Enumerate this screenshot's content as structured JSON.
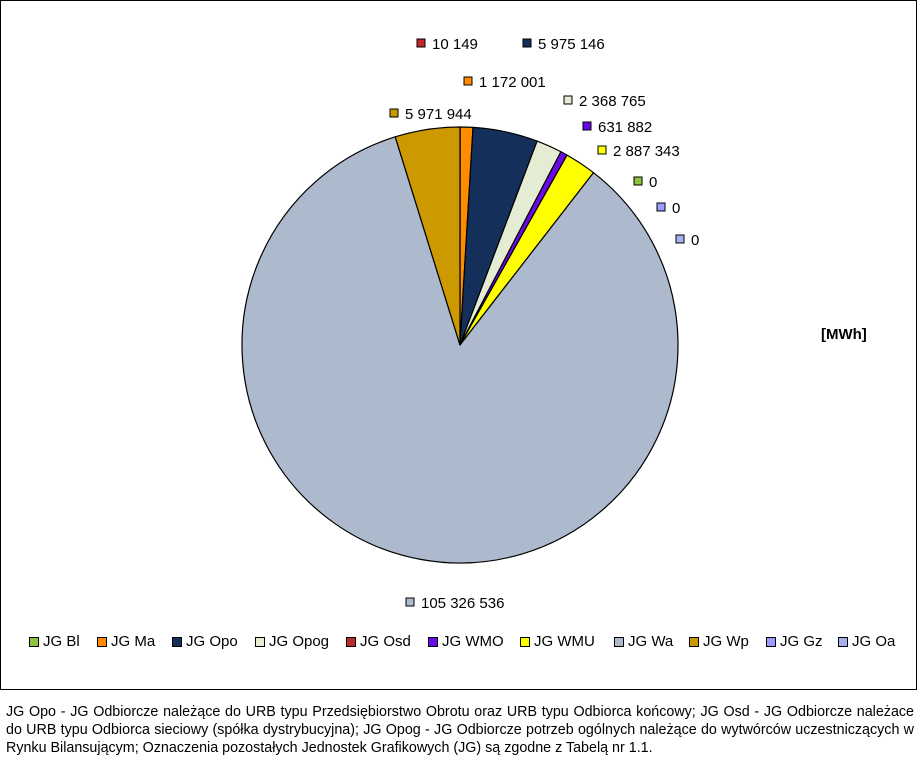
{
  "chart_data": {
    "type": "pie",
    "unit_label": "[MWh]",
    "slices": [
      {
        "name": "JG Osd",
        "value": 10149,
        "label": "10 149",
        "color": "#c0282a"
      },
      {
        "name": "JG Ma",
        "value": 1172001,
        "label": "1 172 001",
        "color": "#ff8c00"
      },
      {
        "name": "JG Opo",
        "value": 5975146,
        "label": "5 975 146",
        "color": "#14305a"
      },
      {
        "name": "JG Opog",
        "value": 2368765,
        "label": "2 368 765",
        "color": "#e4ecd4"
      },
      {
        "name": "JG WMO",
        "value": 631882,
        "label": "631 882",
        "color": "#6a0ae6"
      },
      {
        "name": "JG WMU",
        "value": 2887343,
        "label": "2 887 343",
        "color": "#ffff00"
      },
      {
        "name": "JG Bl",
        "value": 0,
        "label": "0",
        "color": "#8cc43c"
      },
      {
        "name": "JG Gz",
        "value": 0,
        "label": "0",
        "color": "#9c9cff"
      },
      {
        "name": "JG Oa",
        "value": 0,
        "label": "0",
        "color": "#a8b0f0"
      },
      {
        "name": "JG Wa",
        "value": 105326536,
        "label": "105 326 536",
        "color": "#adb9cc"
      },
      {
        "name": "JG Wp",
        "value": 5971944,
        "label": "5 971 944",
        "color": "#cc9900"
      }
    ],
    "legend": [
      {
        "name": "JG Bl",
        "color": "#8cc43c"
      },
      {
        "name": "JG Ma",
        "color": "#ff8c00"
      },
      {
        "name": "JG Opo",
        "color": "#14305a"
      },
      {
        "name": "JG Opog",
        "color": "#e4ecd4"
      },
      {
        "name": "JG Osd",
        "color": "#c0282a"
      },
      {
        "name": "JG WMO",
        "color": "#6a0ae6"
      },
      {
        "name": "JG WMU",
        "color": "#ffff00"
      },
      {
        "name": "JG Wa",
        "color": "#adb9cc"
      },
      {
        "name": "JG Wp",
        "color": "#cc9900"
      },
      {
        "name": "JG Gz",
        "color": "#9c9cff"
      },
      {
        "name": "JG Oa",
        "color": "#a8b0f0"
      }
    ],
    "legend_placement": "bottom"
  },
  "note": "JG Opo - JG Odbiorcze należące do URB typu Przedsiębiorstwo Obrotu oraz URB typu Odbiorca końcowy; JG Osd - JG Odbiorcze należace do URB typu Odbiorca sieciowy (spółka dystrybucyjna); JG Opog - JG Odbiorcze potrzeb ogólnych należące do wytwórców uczestniczących w Rynku Bilansującym; Oznaczenia pozostałych Jednostek Grafikowych (JG) są zgodne z Tabelą nr 1.1."
}
